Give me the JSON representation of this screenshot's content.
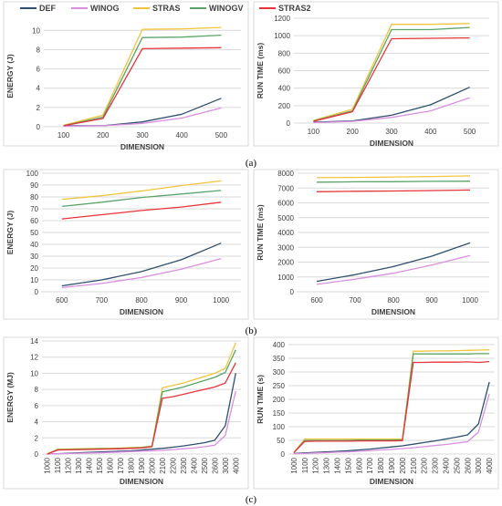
{
  "legend": {
    "items": [
      {
        "name": "DEF",
        "color": "#2e4e6e"
      },
      {
        "name": "WINOG",
        "color": "#d98fe0"
      },
      {
        "name": "STRAS",
        "color": "#f2c43d"
      },
      {
        "name": "WINOGV",
        "color": "#5aa469"
      },
      {
        "name": "STRAS2",
        "color": "#e8333a"
      }
    ]
  },
  "captions": [
    "(a)",
    "(b)",
    "(c)"
  ],
  "chart_data": [
    {
      "type": "line",
      "group": "(a)",
      "xlabel": "DIMENSION",
      "ylabel": "ENERGY (J)",
      "categories": [
        "100",
        "200",
        "300",
        "400",
        "500"
      ],
      "ylim": [
        0,
        10.5
      ],
      "yticks": [
        0,
        2,
        4,
        6,
        8,
        10
      ],
      "grid": true,
      "series": [
        {
          "name": "DEF",
          "color": "#2e4e6e",
          "values": [
            0.1,
            0.1,
            0.5,
            1.3,
            2.95
          ]
        },
        {
          "name": "WINOG",
          "color": "#d98fe0",
          "values": [
            0.05,
            0.1,
            0.35,
            0.9,
            1.95
          ]
        },
        {
          "name": "STRAS",
          "color": "#f2c43d",
          "values": [
            0.15,
            1.2,
            10.1,
            10.15,
            10.3
          ]
        },
        {
          "name": "WINOGV",
          "color": "#5aa469",
          "values": [
            0.1,
            1.0,
            9.25,
            9.3,
            9.5
          ]
        },
        {
          "name": "STRAS2",
          "color": "#e8333a",
          "values": [
            0.1,
            0.85,
            8.1,
            8.15,
            8.2
          ]
        }
      ]
    },
    {
      "type": "line",
      "group": "(a)",
      "xlabel": "DIMENSION",
      "ylabel": "RUN TIME (ms)",
      "categories": [
        "100",
        "200",
        "300",
        "400",
        "500"
      ],
      "ylim": [
        0,
        1200
      ],
      "yticks": [
        0,
        200,
        400,
        600,
        800,
        1000,
        1200
      ],
      "grid": true,
      "series": [
        {
          "name": "DEF",
          "color": "#2e4e6e",
          "values": [
            10,
            25,
            90,
            210,
            410
          ]
        },
        {
          "name": "WINOG",
          "color": "#d98fe0",
          "values": [
            5,
            20,
            65,
            140,
            290
          ]
        },
        {
          "name": "STRAS",
          "color": "#f2c43d",
          "values": [
            30,
            160,
            1130,
            1130,
            1140
          ]
        },
        {
          "name": "WINOGV",
          "color": "#5aa469",
          "values": [
            25,
            140,
            1070,
            1070,
            1095
          ]
        },
        {
          "name": "STRAS2",
          "color": "#e8333a",
          "values": [
            20,
            130,
            965,
            970,
            975
          ]
        }
      ]
    },
    {
      "type": "line",
      "group": "(b)",
      "xlabel": "DIMENSION",
      "ylabel": "ENERGY (J)",
      "categories": [
        "600",
        "700",
        "800",
        "900",
        "1000"
      ],
      "ylim": [
        0,
        100
      ],
      "yticks": [
        0,
        10,
        20,
        30,
        40,
        50,
        60,
        70,
        80,
        90,
        100
      ],
      "grid": true,
      "series": [
        {
          "name": "DEF",
          "color": "#2e4e6e",
          "values": [
            5,
            10,
            17,
            27,
            41
          ]
        },
        {
          "name": "WINOG",
          "color": "#d98fe0",
          "values": [
            3.5,
            7,
            12,
            19,
            28
          ]
        },
        {
          "name": "STRAS",
          "color": "#f2c43d",
          "values": [
            78,
            81,
            85,
            89.5,
            93.5
          ]
        },
        {
          "name": "WINOGV",
          "color": "#5aa469",
          "values": [
            72,
            75.5,
            79.5,
            82.5,
            85.5
          ]
        },
        {
          "name": "STRAS2",
          "color": "#e8333a",
          "values": [
            61.5,
            65,
            68.5,
            71.5,
            75.5
          ]
        }
      ]
    },
    {
      "type": "line",
      "group": "(b)",
      "xlabel": "DIMENSION",
      "ylabel": "RUN TIME (ms)",
      "categories": [
        "600",
        "700",
        "800",
        "900",
        "1000"
      ],
      "ylim": [
        0,
        8000
      ],
      "yticks": [
        0,
        1000,
        2000,
        3000,
        4000,
        5000,
        6000,
        7000,
        8000
      ],
      "grid": true,
      "series": [
        {
          "name": "DEF",
          "color": "#2e4e6e",
          "values": [
            700,
            1150,
            1700,
            2400,
            3300
          ]
        },
        {
          "name": "WINOG",
          "color": "#d98fe0",
          "values": [
            500,
            850,
            1250,
            1800,
            2450
          ]
        },
        {
          "name": "STRAS",
          "color": "#f2c43d",
          "values": [
            7700,
            7720,
            7750,
            7780,
            7820
          ]
        },
        {
          "name": "WINOGV",
          "color": "#5aa469",
          "values": [
            7400,
            7420,
            7430,
            7450,
            7460
          ]
        },
        {
          "name": "STRAS2",
          "color": "#e8333a",
          "values": [
            6750,
            6780,
            6800,
            6830,
            6870
          ]
        }
      ]
    },
    {
      "type": "line",
      "group": "(c)",
      "xlabel": "DIMENSION",
      "ylabel": "ENERGY (MJ)",
      "categories": [
        "1000",
        "1100",
        "1200",
        "1300",
        "1400",
        "1500",
        "1600",
        "1700",
        "1800",
        "1900",
        "2000",
        "2100",
        "2200",
        "2300",
        "2400",
        "2500",
        "2600",
        "3000",
        "4000"
      ],
      "ylim": [
        0,
        14
      ],
      "yticks": [
        0,
        2,
        4,
        6,
        8,
        10,
        12,
        14
      ],
      "grid": true,
      "series": [
        {
          "name": "DEF",
          "color": "#2e4e6e",
          "values": [
            0.0,
            0.05,
            0.1,
            0.15,
            0.2,
            0.25,
            0.3,
            0.35,
            0.4,
            0.5,
            0.6,
            0.7,
            0.85,
            1.0,
            1.2,
            1.4,
            1.7,
            3.5,
            10.0
          ]
        },
        {
          "name": "WINOG",
          "color": "#d98fe0",
          "values": [
            0.0,
            0.03,
            0.06,
            0.1,
            0.13,
            0.16,
            0.2,
            0.25,
            0.3,
            0.35,
            0.4,
            0.45,
            0.55,
            0.65,
            0.75,
            0.9,
            1.1,
            2.3,
            7.8
          ]
        },
        {
          "name": "STRAS",
          "color": "#f2c43d",
          "values": [
            0.0,
            0.6,
            0.62,
            0.65,
            0.68,
            0.7,
            0.72,
            0.75,
            0.8,
            0.85,
            1.0,
            8.2,
            8.5,
            8.8,
            9.2,
            9.6,
            10.0,
            10.6,
            13.8
          ]
        },
        {
          "name": "WINOGV",
          "color": "#5aa469",
          "values": [
            0.0,
            0.55,
            0.57,
            0.6,
            0.62,
            0.65,
            0.67,
            0.7,
            0.75,
            0.8,
            0.95,
            7.7,
            8.0,
            8.3,
            8.7,
            9.1,
            9.5,
            10.1,
            12.9
          ]
        },
        {
          "name": "STRAS2",
          "color": "#e8333a",
          "values": [
            0.0,
            0.5,
            0.52,
            0.55,
            0.57,
            0.6,
            0.62,
            0.65,
            0.7,
            0.75,
            0.9,
            6.9,
            7.1,
            7.4,
            7.7,
            8.0,
            8.3,
            8.8,
            11.3
          ]
        }
      ]
    },
    {
      "type": "line",
      "group": "(c)",
      "xlabel": "DIMENSION",
      "ylabel": "RUN TIME (s)",
      "categories": [
        "1000",
        "1100",
        "1200",
        "1300",
        "1400",
        "1500",
        "1600",
        "1700",
        "1800",
        "1900",
        "2000",
        "2100",
        "2200",
        "2300",
        "2400",
        "2500",
        "2600",
        "3000",
        "4000"
      ],
      "ylim": [
        0,
        400
      ],
      "yticks": [
        0,
        50,
        100,
        150,
        200,
        250,
        300,
        350,
        400
      ],
      "grid": true,
      "series": [
        {
          "name": "DEF",
          "color": "#2e4e6e",
          "values": [
            2,
            4,
            6,
            8,
            10,
            12,
            15,
            18,
            22,
            26,
            30,
            36,
            42,
            48,
            55,
            62,
            70,
            110,
            263
          ]
        },
        {
          "name": "WINOG",
          "color": "#d98fe0",
          "values": [
            1,
            2,
            4,
            5,
            7,
            8,
            10,
            12,
            15,
            17,
            20,
            23,
            27,
            31,
            35,
            40,
            45,
            80,
            220
          ]
        },
        {
          "name": "STRAS",
          "color": "#f2c43d",
          "values": [
            5,
            55,
            55,
            55,
            55,
            55,
            55,
            55,
            55,
            55,
            55,
            376,
            376,
            377,
            377,
            378,
            379,
            380,
            381
          ]
        },
        {
          "name": "WINOGV",
          "color": "#5aa469",
          "values": [
            5,
            50,
            50,
            50,
            50,
            50,
            51,
            51,
            51,
            51,
            52,
            366,
            366,
            366,
            366,
            366,
            366,
            367,
            367
          ]
        },
        {
          "name": "STRAS2",
          "color": "#e8333a",
          "values": [
            5,
            46,
            47,
            47,
            47,
            47,
            48,
            48,
            48,
            48,
            49,
            335,
            335,
            336,
            336,
            336,
            337,
            335,
            338
          ]
        }
      ]
    }
  ]
}
